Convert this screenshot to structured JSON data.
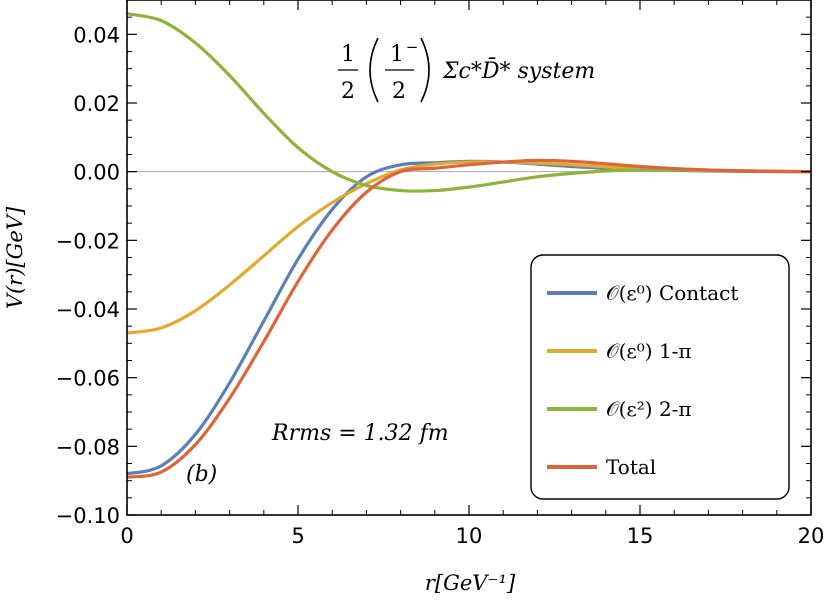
{
  "chart_data": {
    "type": "line",
    "title": "",
    "xlabel": "r[GeV⁻¹]",
    "ylabel": "V(r)[GeV]",
    "xlim": [
      0,
      20
    ],
    "ylim": [
      -0.1,
      0.05
    ],
    "x_ticks": [
      0,
      5,
      10,
      15,
      20
    ],
    "x_tick_labels": [
      "0",
      "5",
      "10",
      "15",
      "20"
    ],
    "y_ticks": [
      -0.1,
      -0.08,
      -0.06,
      -0.04,
      -0.02,
      0.0,
      0.02,
      0.04
    ],
    "y_tick_labels": [
      "−0.10",
      "−0.08",
      "−0.06",
      "−0.04",
      "−0.02",
      "0.00",
      "0.02",
      "0.04"
    ],
    "grid": false,
    "zero_line": true,
    "legend_position": "bottom-right",
    "annotations": {
      "system": {
        "half": "1",
        "half_den": "2",
        "paren_num": "1",
        "paren_sup": "−",
        "paren_den": "2",
        "text": "Σc*D̄* system"
      },
      "rms": "Rrms = 1.32 fm",
      "panel": "(b)"
    },
    "x": [
      0,
      1,
      2,
      3,
      4,
      5,
      6,
      7,
      8,
      9,
      10,
      11,
      12,
      13,
      14,
      15,
      16,
      17,
      18,
      19,
      20
    ],
    "series": [
      {
        "name": "𝒪(ε⁰) Contact",
        "color": "#5B7FB7",
        "values": [
          -0.088,
          -0.0857,
          -0.0765,
          -0.0615,
          -0.0435,
          -0.0255,
          -0.011,
          -0.0015,
          0.002,
          0.0026,
          0.003,
          0.0028,
          0.0022,
          0.0015,
          0.001,
          0.0006,
          0.0004,
          0.0002,
          0.0001,
          0.0,
          0.0
        ]
      },
      {
        "name": "𝒪(ε⁰) 1-π",
        "color": "#E3A92E",
        "values": [
          -0.047,
          -0.0455,
          -0.0405,
          -0.033,
          -0.0245,
          -0.016,
          -0.009,
          -0.0035,
          0.0005,
          0.0022,
          0.0028,
          0.0028,
          0.0025,
          0.002,
          0.0014,
          0.0009,
          0.0006,
          0.0003,
          0.0002,
          0.0001,
          0.0
        ]
      },
      {
        "name": "𝒪(ε²) 2-π",
        "color": "#8DB33A",
        "values": [
          0.046,
          0.044,
          0.0375,
          0.028,
          0.017,
          0.007,
          0.0,
          -0.004,
          -0.0055,
          -0.0055,
          -0.0045,
          -0.003,
          -0.0015,
          -0.0005,
          0.0002,
          0.0005,
          0.0005,
          0.0004,
          0.0003,
          0.0001,
          0.0
        ]
      },
      {
        "name": "Total",
        "color": "#E0643A",
        "values": [
          -0.089,
          -0.0875,
          -0.0795,
          -0.066,
          -0.0495,
          -0.032,
          -0.017,
          -0.006,
          0.0,
          0.001,
          0.002,
          0.0028,
          0.0033,
          0.003,
          0.0023,
          0.0015,
          0.0009,
          0.0005,
          0.0002,
          0.0001,
          0.0
        ]
      }
    ]
  }
}
